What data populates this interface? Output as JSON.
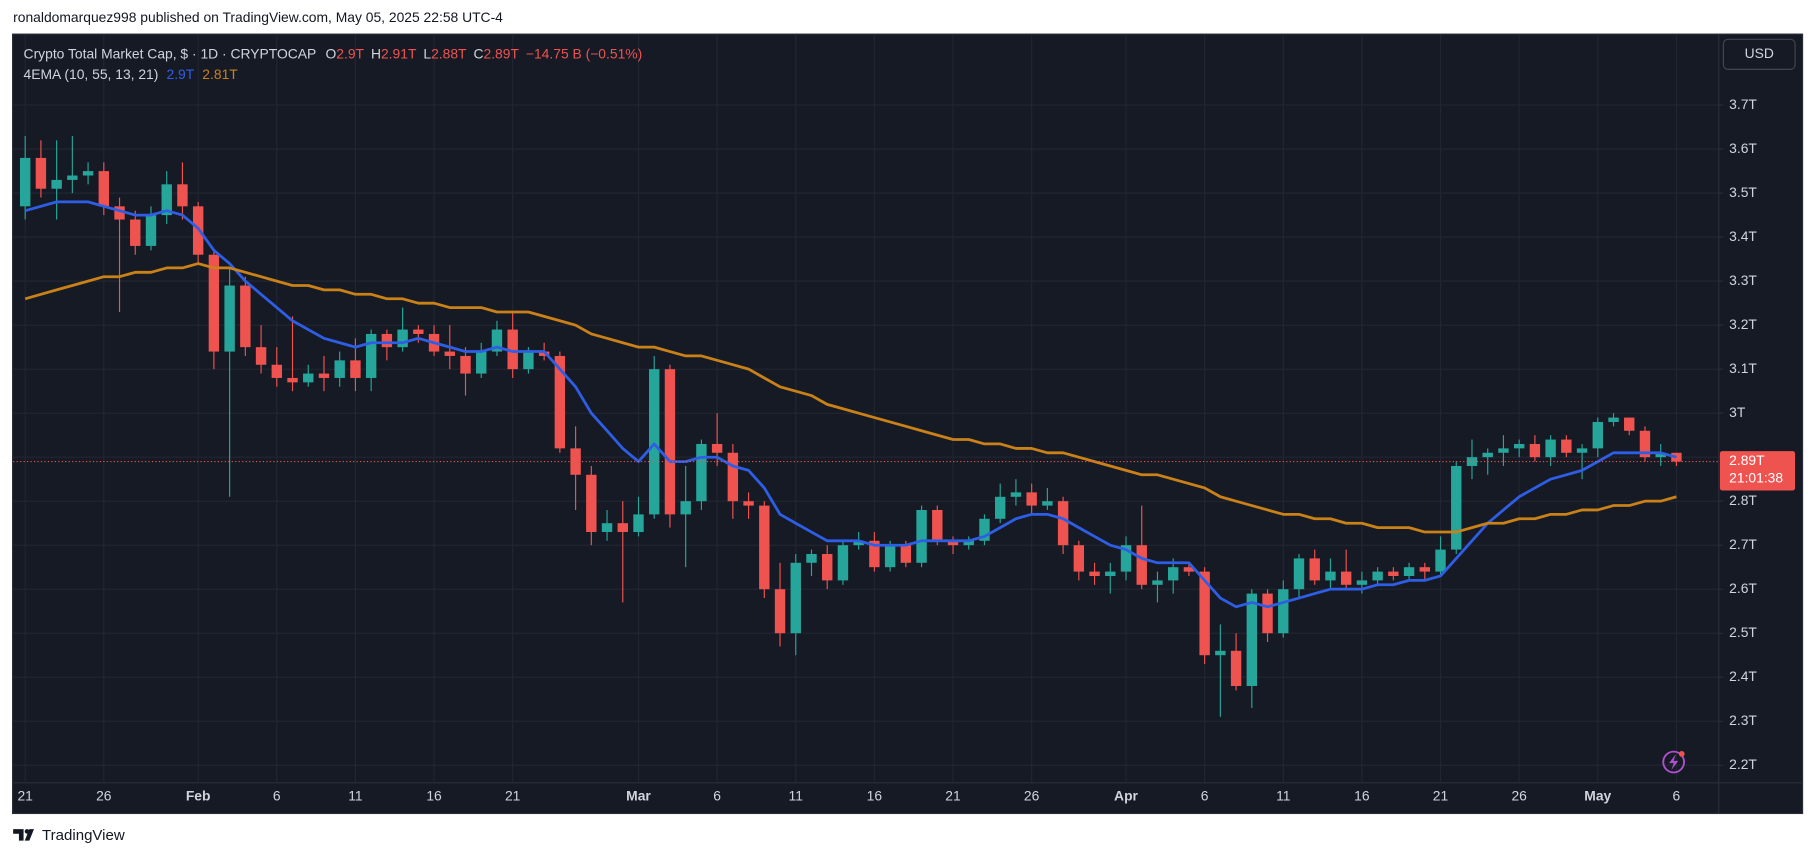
{
  "header": {
    "byline": "ronaldomarquez998 published on TradingView.com, May 05, 2025 22:58 UTC-4"
  },
  "chart_data": {
    "type": "candlestick",
    "title": "Crypto Total Market Cap, $ · 1D · CRYPTOCAP",
    "ohlc_legend": [
      {
        "key": "O",
        "value": "2.9T"
      },
      {
        "key": "H",
        "value": "2.91T"
      },
      {
        "key": "L",
        "value": "2.88T"
      },
      {
        "key": "C",
        "value": "2.89T"
      }
    ],
    "change": "−14.75 B (−0.51%)",
    "indicator": {
      "title": "4EMA (10, 55, 13, 21)",
      "values": [
        "2.9T",
        "2.81T"
      ]
    },
    "currency": "USD",
    "last_price": {
      "value": 2.89,
      "label": "2.89T",
      "countdown": "21:01:38"
    },
    "categories": [
      "21",
      null,
      null,
      null,
      null,
      "26",
      null,
      null,
      null,
      null,
      null,
      "Feb",
      null,
      null,
      null,
      null,
      "6",
      null,
      null,
      null,
      null,
      "11",
      null,
      null,
      null,
      null,
      "16",
      null,
      null,
      null,
      null,
      "21",
      null,
      null,
      null,
      null,
      null,
      null,
      null,
      "Mar",
      null,
      null,
      null,
      null,
      "6",
      null,
      null,
      null,
      null,
      "11",
      null,
      null,
      null,
      null,
      "16",
      null,
      null,
      null,
      null,
      "21",
      null,
      null,
      null,
      null,
      "26",
      null,
      null,
      null,
      null,
      null,
      "Apr",
      null,
      null,
      null,
      null,
      "6",
      null,
      null,
      null,
      null,
      "11",
      null,
      null,
      null,
      null,
      "16",
      null,
      null,
      null,
      null,
      "21",
      null,
      null,
      null,
      null,
      "26",
      null,
      null,
      null,
      null,
      "May",
      null,
      null,
      null,
      null,
      "6"
    ],
    "open": [
      3.47,
      3.58,
      3.51,
      3.53,
      3.54,
      3.55,
      3.47,
      3.44,
      3.38,
      3.45,
      3.52,
      3.47,
      3.36,
      3.14,
      3.29,
      3.15,
      3.11,
      3.08,
      3.07,
      3.09,
      3.08,
      3.12,
      3.08,
      3.18,
      3.15,
      3.19,
      3.18,
      3.14,
      3.13,
      3.09,
      3.14,
      3.19,
      3.1,
      3.14,
      3.13,
      2.92,
      2.86,
      2.73,
      2.75,
      2.73,
      2.77,
      3.1,
      2.77,
      2.8,
      2.93,
      2.91,
      2.8,
      2.79,
      2.6,
      2.5,
      2.66,
      2.68,
      2.62,
      2.7,
      2.71,
      2.65,
      2.7,
      2.66,
      2.78,
      2.71,
      2.7,
      2.71,
      2.76,
      2.81,
      2.82,
      2.79,
      2.8,
      2.7,
      2.64,
      2.63,
      2.64,
      2.7,
      2.61,
      2.62,
      2.65,
      2.64,
      2.45,
      2.46,
      2.38,
      2.59,
      2.5,
      2.6,
      2.67,
      2.62,
      2.64,
      2.61,
      2.62,
      2.64,
      2.63,
      2.65,
      2.64,
      2.69,
      2.88,
      2.9,
      2.91,
      2.92,
      2.93,
      2.9,
      2.94,
      2.91,
      2.92,
      2.98,
      2.99,
      2.96,
      2.9,
      2.91
    ],
    "high": [
      3.63,
      3.62,
      3.62,
      3.63,
      3.57,
      3.57,
      3.49,
      3.46,
      3.47,
      3.55,
      3.57,
      3.48,
      3.37,
      3.33,
      3.31,
      3.2,
      3.15,
      3.22,
      3.11,
      3.13,
      3.14,
      3.17,
      3.19,
      3.19,
      3.24,
      3.2,
      3.2,
      3.2,
      3.15,
      3.16,
      3.21,
      3.23,
      3.15,
      3.16,
      3.14,
      2.97,
      2.88,
      2.78,
      2.8,
      2.81,
      3.13,
      3.11,
      2.88,
      2.94,
      3.0,
      2.93,
      2.82,
      2.8,
      2.66,
      2.68,
      2.69,
      2.7,
      2.71,
      2.73,
      2.73,
      2.71,
      2.71,
      2.79,
      2.79,
      2.72,
      2.72,
      2.77,
      2.84,
      2.85,
      2.84,
      2.83,
      2.81,
      2.71,
      2.66,
      2.66,
      2.72,
      2.79,
      2.64,
      2.67,
      2.66,
      2.65,
      2.52,
      2.5,
      2.6,
      2.6,
      2.62,
      2.68,
      2.69,
      2.67,
      2.69,
      2.64,
      2.65,
      2.65,
      2.66,
      2.66,
      2.72,
      2.89,
      2.94,
      2.92,
      2.95,
      2.94,
      2.95,
      2.95,
      2.95,
      2.93,
      2.99,
      3.0,
      2.99,
      2.97,
      2.93,
      2.91
    ],
    "low": [
      3.44,
      3.49,
      3.44,
      3.5,
      3.52,
      3.45,
      3.23,
      3.36,
      3.37,
      3.43,
      3.44,
      3.34,
      3.1,
      2.81,
      3.13,
      3.09,
      3.06,
      3.05,
      3.06,
      3.05,
      3.06,
      3.05,
      3.05,
      3.12,
      3.14,
      3.16,
      3.13,
      3.1,
      3.04,
      3.08,
      3.13,
      3.08,
      3.09,
      3.12,
      2.91,
      2.78,
      2.7,
      2.71,
      2.57,
      2.72,
      2.76,
      2.74,
      2.65,
      2.78,
      2.88,
      2.76,
      2.76,
      2.58,
      2.47,
      2.45,
      2.63,
      2.6,
      2.61,
      2.69,
      2.64,
      2.64,
      2.65,
      2.65,
      2.7,
      2.68,
      2.69,
      2.7,
      2.75,
      2.79,
      2.77,
      2.78,
      2.68,
      2.62,
      2.61,
      2.59,
      2.62,
      2.6,
      2.57,
      2.59,
      2.63,
      2.43,
      2.31,
      2.37,
      2.33,
      2.48,
      2.49,
      2.58,
      2.61,
      2.6,
      2.6,
      2.59,
      2.61,
      2.62,
      2.62,
      2.62,
      2.63,
      2.68,
      2.85,
      2.86,
      2.88,
      2.9,
      2.89,
      2.88,
      2.9,
      2.85,
      2.9,
      2.97,
      2.95,
      2.89,
      2.88,
      2.88
    ],
    "close": [
      3.58,
      3.51,
      3.53,
      3.54,
      3.55,
      3.47,
      3.44,
      3.38,
      3.45,
      3.52,
      3.47,
      3.36,
      3.14,
      3.29,
      3.15,
      3.11,
      3.08,
      3.07,
      3.09,
      3.08,
      3.12,
      3.08,
      3.18,
      3.15,
      3.19,
      3.18,
      3.14,
      3.13,
      3.09,
      3.14,
      3.19,
      3.1,
      3.14,
      3.13,
      2.92,
      2.86,
      2.73,
      2.75,
      2.73,
      2.77,
      3.1,
      2.77,
      2.8,
      2.93,
      2.91,
      2.8,
      2.79,
      2.6,
      2.5,
      2.66,
      2.68,
      2.62,
      2.7,
      2.71,
      2.65,
      2.7,
      2.66,
      2.78,
      2.71,
      2.7,
      2.71,
      2.76,
      2.81,
      2.82,
      2.79,
      2.8,
      2.7,
      2.64,
      2.63,
      2.64,
      2.7,
      2.61,
      2.62,
      2.65,
      2.64,
      2.45,
      2.46,
      2.38,
      2.59,
      2.5,
      2.6,
      2.67,
      2.62,
      2.64,
      2.61,
      2.62,
      2.64,
      2.63,
      2.65,
      2.64,
      2.69,
      2.88,
      2.9,
      2.91,
      2.92,
      2.93,
      2.9,
      2.94,
      2.91,
      2.92,
      2.98,
      2.99,
      2.96,
      2.9,
      2.91,
      2.89
    ],
    "up_color": "#26a69a",
    "down_color": "#ef5350",
    "lines": [
      {
        "color": "#2f5ee6",
        "values": [
          3.46,
          3.47,
          3.48,
          3.48,
          3.48,
          3.47,
          3.46,
          3.45,
          3.45,
          3.46,
          3.45,
          3.42,
          3.37,
          3.34,
          3.3,
          3.27,
          3.24,
          3.21,
          3.19,
          3.17,
          3.16,
          3.15,
          3.16,
          3.16,
          3.16,
          3.17,
          3.16,
          3.15,
          3.14,
          3.14,
          3.15,
          3.14,
          3.14,
          3.14,
          3.1,
          3.06,
          3.0,
          2.96,
          2.92,
          2.89,
          2.93,
          2.89,
          2.89,
          2.9,
          2.9,
          2.88,
          2.87,
          2.83,
          2.77,
          2.75,
          2.73,
          2.71,
          2.71,
          2.71,
          2.7,
          2.7,
          2.7,
          2.71,
          2.71,
          2.71,
          2.71,
          2.72,
          2.74,
          2.76,
          2.77,
          2.77,
          2.76,
          2.74,
          2.72,
          2.7,
          2.69,
          2.67,
          2.66,
          2.66,
          2.66,
          2.62,
          2.58,
          2.56,
          2.57,
          2.56,
          2.57,
          2.58,
          2.59,
          2.6,
          2.6,
          2.6,
          2.61,
          2.61,
          2.62,
          2.62,
          2.63,
          2.67,
          2.71,
          2.75,
          2.78,
          2.81,
          2.83,
          2.85,
          2.86,
          2.87,
          2.89,
          2.91,
          2.91,
          2.91,
          2.91,
          2.9
        ]
      },
      {
        "color": "#c98118",
        "values": [
          3.26,
          3.27,
          3.28,
          3.29,
          3.3,
          3.31,
          3.31,
          3.32,
          3.32,
          3.33,
          3.33,
          3.34,
          3.33,
          3.33,
          3.32,
          3.31,
          3.3,
          3.29,
          3.29,
          3.28,
          3.28,
          3.27,
          3.27,
          3.26,
          3.26,
          3.25,
          3.25,
          3.24,
          3.24,
          3.24,
          3.23,
          3.23,
          3.23,
          3.22,
          3.21,
          3.2,
          3.18,
          3.17,
          3.16,
          3.15,
          3.15,
          3.14,
          3.13,
          3.13,
          3.12,
          3.11,
          3.1,
          3.08,
          3.06,
          3.05,
          3.04,
          3.02,
          3.01,
          3.0,
          2.99,
          2.98,
          2.97,
          2.96,
          2.95,
          2.94,
          2.94,
          2.93,
          2.93,
          2.92,
          2.92,
          2.91,
          2.91,
          2.9,
          2.89,
          2.88,
          2.87,
          2.86,
          2.86,
          2.85,
          2.84,
          2.83,
          2.81,
          2.8,
          2.79,
          2.78,
          2.77,
          2.77,
          2.76,
          2.76,
          2.75,
          2.75,
          2.74,
          2.74,
          2.74,
          2.73,
          2.73,
          2.73,
          2.74,
          2.75,
          2.75,
          2.76,
          2.76,
          2.77,
          2.77,
          2.78,
          2.78,
          2.79,
          2.79,
          2.8,
          2.8,
          2.81
        ]
      }
    ],
    "ylim": [
      2.16,
      3.86
    ],
    "yticks": [
      {
        "value": 2.2,
        "label": "2.2T"
      },
      {
        "value": 2.3,
        "label": "2.3T"
      },
      {
        "value": 2.4,
        "label": "2.4T"
      },
      {
        "value": 2.5,
        "label": "2.5T"
      },
      {
        "value": 2.6,
        "label": "2.6T"
      },
      {
        "value": 2.7,
        "label": "2.7T"
      },
      {
        "value": 2.8,
        "label": "2.8T"
      },
      {
        "value": 2.9,
        "label": "2.9T"
      },
      {
        "value": 3,
        "label": "3T"
      },
      {
        "value": 3.1,
        "label": "3.1T"
      },
      {
        "value": 3.2,
        "label": "3.2T"
      },
      {
        "value": 3.3,
        "label": "3.3T"
      },
      {
        "value": 3.4,
        "label": "3.4T"
      },
      {
        "value": 3.5,
        "label": "3.5T"
      },
      {
        "value": 3.6,
        "label": "3.6T"
      },
      {
        "value": 3.7,
        "label": "3.7T"
      }
    ],
    "grid": true
  },
  "footer": {
    "brand": "TradingView"
  }
}
